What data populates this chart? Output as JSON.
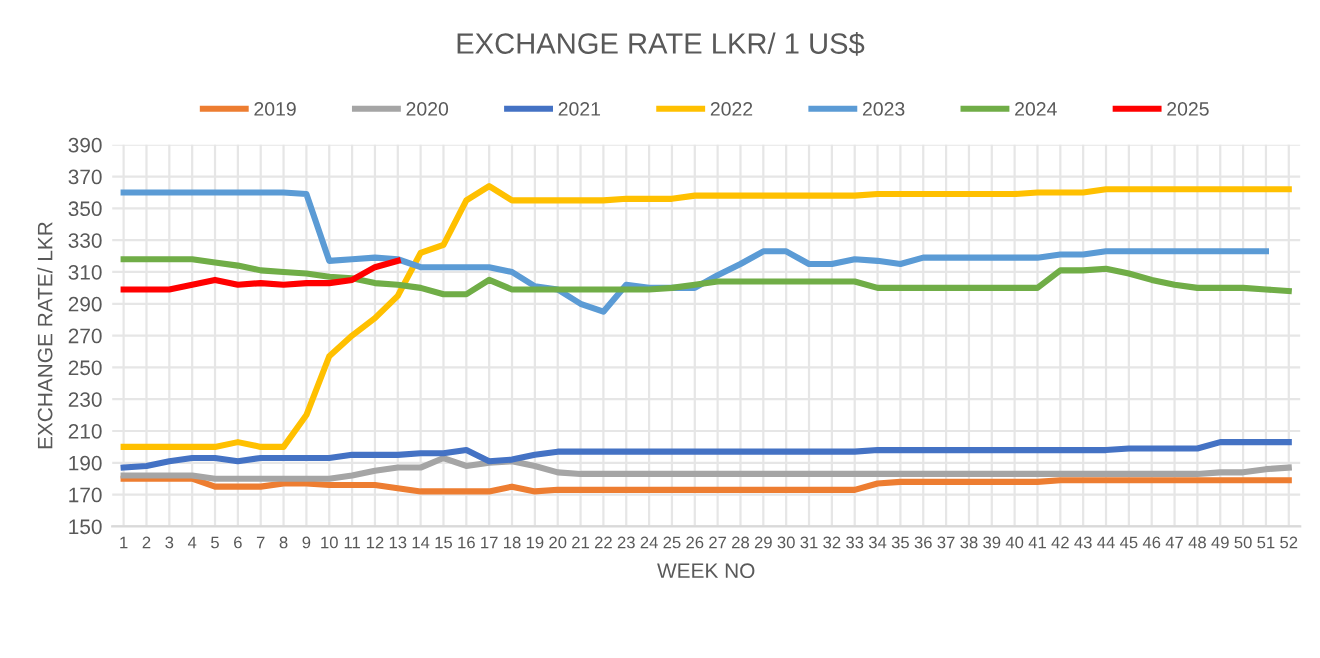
{
  "chart_data": {
    "type": "line",
    "title": "EXCHANGE RATE LKR/ 1 US$",
    "xlabel": "WEEK NO",
    "ylabel": "EXCHANGE RATE/ LKR",
    "categories": [
      "1",
      "2",
      "3",
      "4",
      "5",
      "6",
      "7",
      "8",
      "9",
      "10",
      "11",
      "12",
      "13",
      "14",
      "15",
      "16",
      "17",
      "18",
      "19",
      "20",
      "21",
      "22",
      "23",
      "24",
      "25",
      "26",
      "27",
      "28",
      "29",
      "30",
      "31",
      "32",
      "33",
      "34",
      "35",
      "36",
      "37",
      "38",
      "39",
      "40",
      "41",
      "42",
      "43",
      "44",
      "45",
      "46",
      "47",
      "48",
      "49",
      "50",
      "51",
      "52"
    ],
    "ylim": [
      150,
      390
    ],
    "yticks": [
      150,
      170,
      190,
      210,
      230,
      250,
      270,
      290,
      310,
      330,
      350,
      370,
      390
    ],
    "grid": true,
    "legend": "top",
    "marker": "none",
    "line_style": "solid",
    "series": [
      {
        "name": "2019",
        "color": "#ed7d31",
        "values": [
          180,
          180,
          180,
          180,
          175,
          175,
          175,
          177,
          177,
          176,
          176,
          176,
          174,
          172,
          172,
          172,
          172,
          175,
          172,
          173,
          173,
          173,
          173,
          173,
          173,
          173,
          173,
          173,
          173,
          173,
          173,
          173,
          173,
          177,
          178,
          178,
          178,
          178,
          178,
          178,
          178,
          179,
          179,
          179,
          179,
          179,
          179,
          179,
          179,
          179,
          179,
          179
        ]
      },
      {
        "name": "2020",
        "color": "#a5a5a5",
        "values": [
          182,
          182,
          182,
          182,
          180,
          180,
          180,
          180,
          180,
          180,
          182,
          185,
          187,
          187,
          193,
          188,
          190,
          191,
          188,
          184,
          183,
          183,
          183,
          183,
          183,
          183,
          183,
          183,
          183,
          183,
          183,
          183,
          183,
          183,
          183,
          183,
          183,
          183,
          183,
          183,
          183,
          183,
          183,
          183,
          183,
          183,
          183,
          183,
          184,
          184,
          186,
          187
        ]
      },
      {
        "name": "2021",
        "color": "#4472c4",
        "values": [
          187,
          188,
          191,
          193,
          193,
          191,
          193,
          193,
          193,
          193,
          195,
          195,
          195,
          196,
          196,
          198,
          191,
          192,
          195,
          197,
          197,
          197,
          197,
          197,
          197,
          197,
          197,
          197,
          197,
          197,
          197,
          197,
          197,
          198,
          198,
          198,
          198,
          198,
          198,
          198,
          198,
          198,
          198,
          198,
          199,
          199,
          199,
          199,
          203,
          203,
          203,
          203
        ]
      },
      {
        "name": "2022",
        "color": "#ffc000",
        "values": [
          200,
          200,
          200,
          200,
          200,
          203,
          200,
          200,
          220,
          257,
          270,
          281,
          295,
          322,
          327,
          355,
          364,
          355,
          355,
          355,
          355,
          355,
          356,
          356,
          356,
          358,
          358,
          358,
          358,
          358,
          358,
          358,
          358,
          359,
          359,
          359,
          359,
          359,
          359,
          359,
          360,
          360,
          360,
          362,
          362,
          362,
          362,
          362,
          362,
          362,
          362,
          362
        ]
      },
      {
        "name": "2023",
        "color": "#5b9bd5",
        "values": [
          360,
          360,
          360,
          360,
          360,
          360,
          360,
          360,
          359,
          317,
          318,
          319,
          318,
          313,
          313,
          313,
          313,
          310,
          301,
          299,
          290,
          285,
          302,
          300,
          300,
          300,
          308,
          315,
          323,
          323,
          315,
          315,
          318,
          317,
          315,
          319,
          319,
          319,
          319,
          319,
          319,
          321,
          321,
          323,
          323,
          323,
          323,
          323,
          323,
          323,
          323,
          null
        ]
      },
      {
        "name": "2024",
        "color": "#70ad47",
        "values": [
          318,
          318,
          318,
          318,
          316,
          314,
          311,
          310,
          309,
          307,
          306,
          303,
          302,
          300,
          296,
          296,
          305,
          299,
          299,
          299,
          299,
          299,
          299,
          299,
          300,
          302,
          304,
          304,
          304,
          304,
          304,
          304,
          304,
          300,
          300,
          300,
          300,
          300,
          300,
          300,
          300,
          311,
          311,
          312,
          309,
          305,
          302,
          300,
          300,
          300,
          299,
          298
        ]
      },
      {
        "name": "2025",
        "color": "#ff0000",
        "values": [
          299,
          299,
          299,
          302,
          305,
          302,
          303,
          302,
          303,
          303,
          305,
          313,
          317,
          null,
          null,
          null,
          null,
          null,
          null,
          null,
          null,
          null,
          null,
          null,
          null,
          null,
          null,
          null,
          null,
          null,
          null,
          null,
          null,
          null,
          null,
          null,
          null,
          null,
          null,
          null,
          null,
          null,
          null,
          null,
          null,
          null,
          null,
          null,
          null,
          null,
          null,
          null
        ]
      }
    ]
  }
}
